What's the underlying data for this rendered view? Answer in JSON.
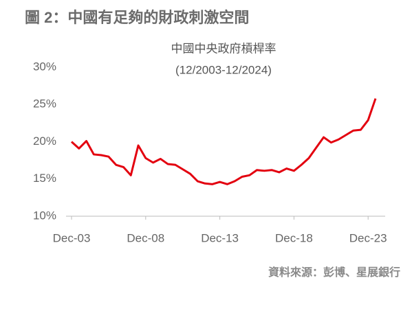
{
  "chart_data": {
    "type": "line",
    "title": "圖 2：中國有足夠的財政刺激空間",
    "subtitle": "中國中央政府槓桿率",
    "subtitle2": "(12/2003-12/2024)",
    "source": "資料來源：彭博、星展銀行",
    "categories": [
      "Dec-03",
      null,
      null,
      null,
      null,
      null,
      null,
      null,
      null,
      null,
      "Dec-08",
      null,
      null,
      null,
      null,
      null,
      null,
      null,
      null,
      null,
      "Dec-13",
      null,
      null,
      null,
      null,
      null,
      null,
      null,
      null,
      null,
      "Dec-18",
      null,
      null,
      null,
      null,
      null,
      null,
      null,
      null,
      null,
      "Dec-23",
      null
    ],
    "series": [
      {
        "color": "#e3000f",
        "values": [
          20.0,
          19.1,
          20.1,
          18.3,
          18.2,
          18.0,
          16.9,
          16.6,
          15.5,
          19.5,
          17.8,
          17.2,
          17.7,
          17.0,
          16.9,
          16.3,
          15.7,
          14.7,
          14.4,
          14.3,
          14.6,
          14.3,
          14.7,
          15.3,
          15.5,
          16.2,
          16.1,
          16.2,
          15.9,
          16.4,
          16.1,
          16.9,
          17.8,
          19.2,
          20.6,
          19.9,
          20.3,
          20.9,
          21.5,
          21.6,
          22.9,
          25.8
        ]
      }
    ],
    "ylim": [
      10,
      30
    ],
    "yticks": [
      {
        "value": 10,
        "label": "10%"
      },
      {
        "value": 15,
        "label": "15%"
      },
      {
        "value": 20,
        "label": "20%"
      },
      {
        "value": 25,
        "label": "25%"
      },
      {
        "value": 30,
        "label": "30%"
      }
    ],
    "grid": false
  }
}
